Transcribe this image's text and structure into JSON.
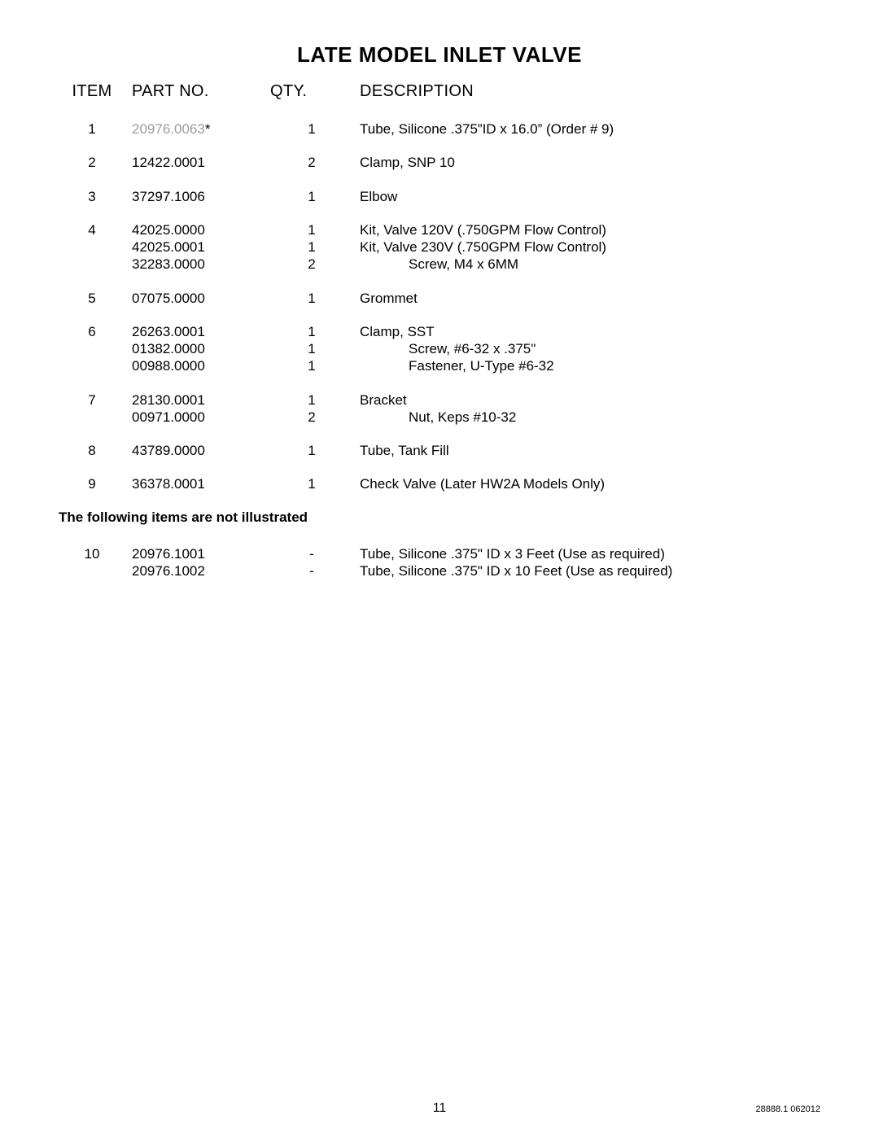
{
  "title": "LATE MODEL INLET VALVE",
  "headers": {
    "item": "ITEM",
    "part": "PART NO.",
    "qty": "QTY.",
    "desc": "DESCRIPTION"
  },
  "note": "The following items are not illustrated",
  "page_number": "11",
  "doc_ref": "28888.1 062012",
  "rows": [
    {
      "item": "1",
      "lines": [
        {
          "part": "20976.0063",
          "part_faded": true,
          "star": true,
          "qty": "1",
          "desc": "Tube, Silicone .375”ID x 16.0” (Order # 9)"
        }
      ]
    },
    {
      "item": "2",
      "lines": [
        {
          "part": "12422.0001",
          "qty": "2",
          "desc": "Clamp, SNP 10"
        }
      ]
    },
    {
      "item": "3",
      "lines": [
        {
          "part": "37297.1006",
          "qty": "1",
          "desc": "Elbow"
        }
      ]
    },
    {
      "item": "4",
      "lines": [
        {
          "part": "42025.0000",
          "qty": "1",
          "desc": "Kit, Valve 120V (.750GPM Flow Control)"
        },
        {
          "part": "42025.0001",
          "qty": "1",
          "desc": "Kit, Valve 230V (.750GPM Flow Control)"
        },
        {
          "part": "32283.0000",
          "qty": "2",
          "desc": "Screw, M4 x 6MM",
          "indent": true
        }
      ]
    },
    {
      "item": "5",
      "lines": [
        {
          "part": "07075.0000",
          "qty": "1",
          "desc": "Grommet"
        }
      ]
    },
    {
      "item": "6",
      "lines": [
        {
          "part": "26263.0001",
          "qty": "1",
          "desc": "Clamp, SST"
        },
        {
          "part": "01382.0000",
          "qty": "1",
          "desc": "Screw, #6-32 x .375\"",
          "indent": true
        },
        {
          "part": "00988.0000",
          "qty": "1",
          "desc": "Fastener, U-Type #6-32",
          "indent": true
        }
      ]
    },
    {
      "item": "7",
      "lines": [
        {
          "part": "28130.0001",
          "qty": "1",
          "desc": "Bracket"
        },
        {
          "part": "00971.0000",
          "qty": "2",
          "desc": "Nut, Keps #10-32",
          "indent": true
        }
      ]
    },
    {
      "item": "8",
      "lines": [
        {
          "part": "43789.0000",
          "qty": "1",
          "desc": "Tube, Tank Fill"
        }
      ]
    },
    {
      "item": "9",
      "lines": [
        {
          "part": "36378.0001",
          "qty": "1",
          "desc": "Check Valve (Later HW2A Models Only)"
        }
      ]
    }
  ],
  "rows_after_note": [
    {
      "item": "10",
      "lines": [
        {
          "part": "20976.1001",
          "qty": "-",
          "desc": "Tube, Silicone .375\" ID x 3 Feet (Use as required)"
        },
        {
          "part": "20976.1002",
          "qty": "-",
          "desc": "Tube, Silicone .375\" ID x 10 Feet (Use as required)"
        }
      ]
    }
  ]
}
